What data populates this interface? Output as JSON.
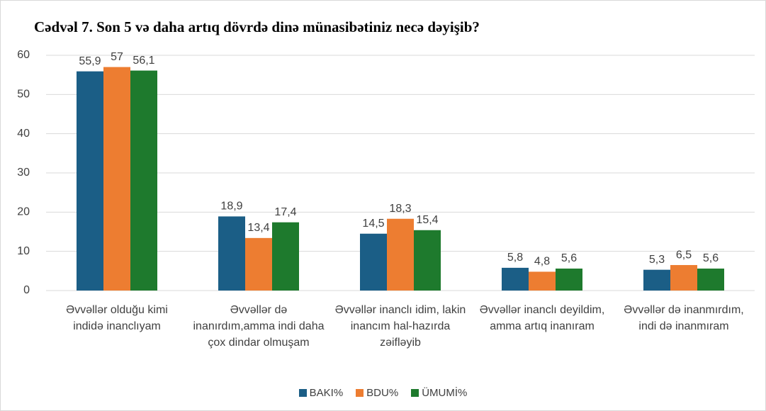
{
  "chart_data": {
    "type": "bar",
    "title": "Cədvəl 7. Son 5 və daha artıq dövrdə dinə münasibətiniz necə dəyişib?",
    "categories": [
      "Əvvəllər olduğu kimi indidə inanclıyam",
      "Əvvəllər də inanırdım,amma indi daha çox dindar olmuşam",
      "Əvvəllər inanclı idim, lakin inancım hal-hazırda zəifləyib",
      "Əvvəllər inanclı deyildim, amma artıq inanıram",
      "Əvvəllər də inanmırdım, indi də inanmıram"
    ],
    "series": [
      {
        "name": "BAKI%",
        "color": "#1b5e86",
        "values": [
          55.9,
          18.9,
          14.5,
          5.8,
          5.3
        ],
        "value_labels": [
          "55,9",
          "18,9",
          "14,5",
          "5,8",
          "5,3"
        ]
      },
      {
        "name": "BDU%",
        "color": "#ed7d31",
        "values": [
          57,
          13.4,
          18.3,
          4.8,
          6.5
        ],
        "value_labels": [
          "57",
          "13,4",
          "18,3",
          "4,8",
          "6,5"
        ]
      },
      {
        "name": "ÜMUMİ%",
        "color": "#1e7a2d",
        "values": [
          56.1,
          17.4,
          15.4,
          5.6,
          5.6
        ],
        "value_labels": [
          "56,1",
          "17,4",
          "15,4",
          "5,6",
          "5,6"
        ]
      }
    ],
    "ylim": [
      0,
      60
    ],
    "yticks": [
      0,
      10,
      20,
      30,
      40,
      50,
      60
    ],
    "grid": true,
    "legend": "bottom"
  }
}
